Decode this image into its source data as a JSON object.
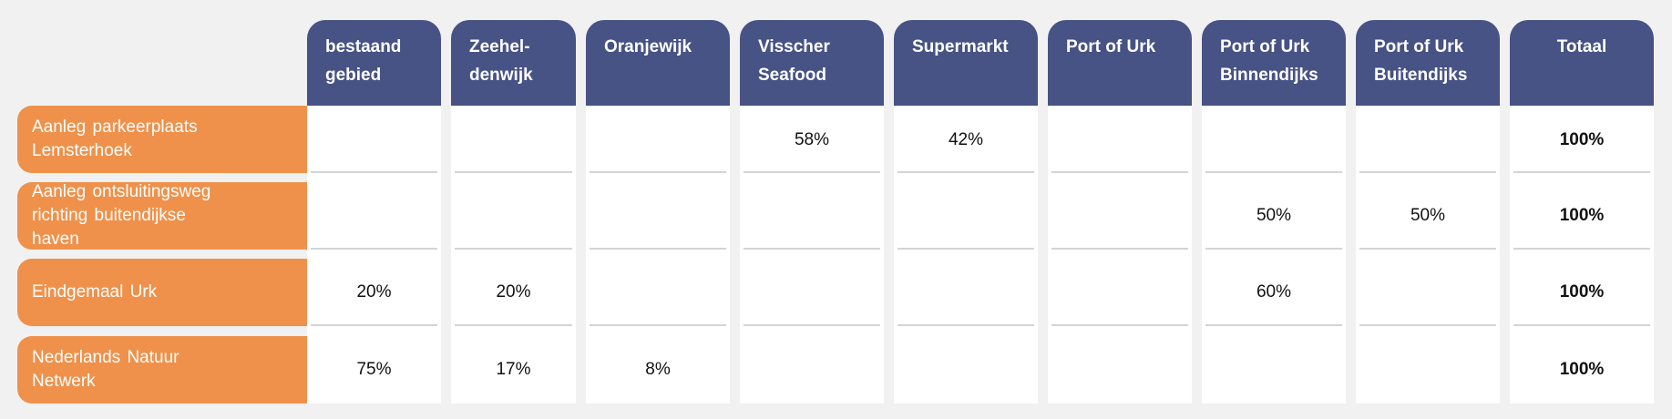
{
  "chart_data": {
    "type": "table",
    "columns": [
      "bestaand gebied",
      "Zeehel-denwijk",
      "Oranjewijk",
      "Visscher Seafood",
      "Supermarkt",
      "Port of Urk",
      "Port of Urk Binnendijks",
      "Port of Urk Buitendijks",
      "Totaal"
    ],
    "rows": [
      {
        "label": "Aanleg parkeerplaats Lemsterhoek",
        "values": [
          "",
          "",
          "",
          "58%",
          "42%",
          "",
          "",
          "",
          "100%"
        ]
      },
      {
        "label": "Aanleg ontsluitingsweg richting buitendijkse haven",
        "values": [
          "",
          "",
          "",
          "",
          "",
          "",
          "50%",
          "50%",
          "100%"
        ]
      },
      {
        "label": "Eindgemaal Urk",
        "values": [
          "20%",
          "20%",
          "",
          "",
          "",
          "",
          "60%",
          "",
          "100%"
        ]
      },
      {
        "label": "Nederlands Natuur Netwerk",
        "values": [
          "75%",
          "17%",
          "8%",
          "",
          "",
          "",
          "",
          "",
          "100%"
        ]
      }
    ]
  },
  "colors": {
    "header": "#475285",
    "row_label": "#ef914b",
    "background": "#f2f1f1"
  }
}
